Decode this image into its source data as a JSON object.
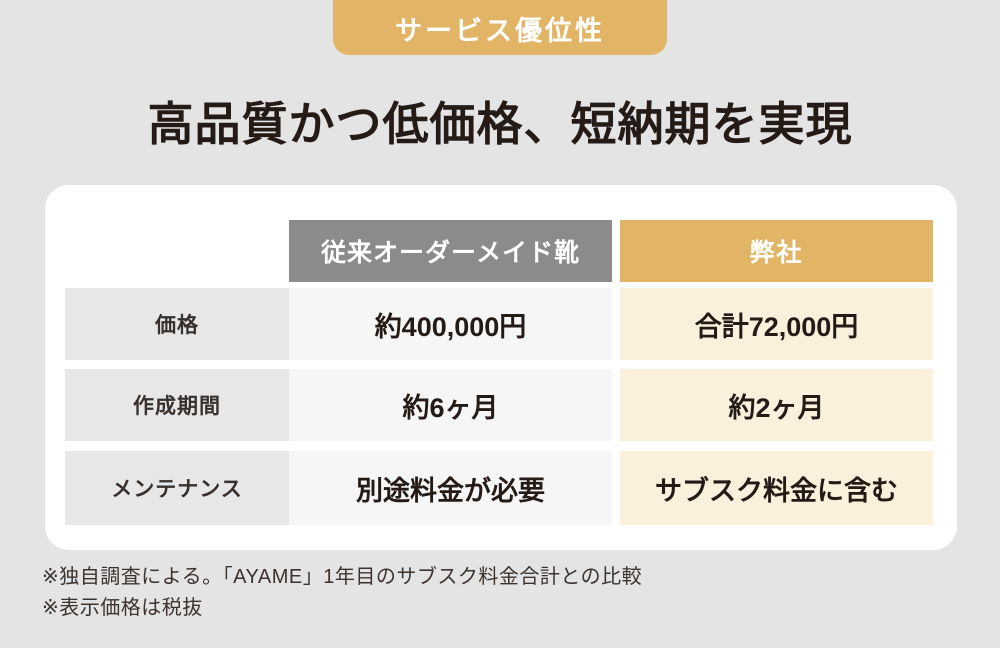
{
  "header": {
    "badge": "サービス優位性",
    "title": "高品質かつ低価格、短納期を実現"
  },
  "table": {
    "columns": [
      {
        "key": "traditional",
        "label": "従来オーダーメイド靴"
      },
      {
        "key": "ours",
        "label": "弊社"
      }
    ],
    "rows": [
      {
        "label": "価格",
        "traditional": "約400,000円",
        "ours": "合計72,000円"
      },
      {
        "label": "作成期間",
        "traditional": "約6ヶ月",
        "ours": "約2ヶ月"
      },
      {
        "label": "メンテナンス",
        "traditional": "別途料金が必要",
        "ours": "サブスク料金に含む"
      }
    ]
  },
  "footnotes": [
    "※独自調査による。「AYAME」1年目のサブスク料金合計との比較",
    "※表示価格は税抜"
  ],
  "colors": {
    "background": "#e4e4e4",
    "accent_gold": "#e2b566",
    "accent_cream": "#faf0dc",
    "header_gray": "#8b8b8b",
    "label_cell_gray": "#e7e7e7",
    "value_cell_gray": "#f6f6f6",
    "card_white": "#ffffff",
    "ink": "#251b16",
    "footnote_ink": "#3c332e"
  }
}
